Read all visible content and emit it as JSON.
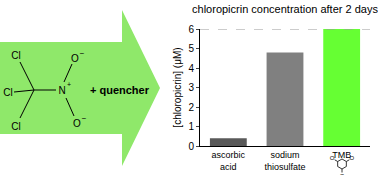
{
  "chart_data": {
    "type": "bar",
    "title": "chloropicrin concentration after 2 days",
    "y_label": "[chloropicrin] (μM)",
    "categories": [
      "ascorbic acid",
      "sodium thiosulfate",
      "TMB"
    ],
    "values": [
      0.4,
      4.8,
      6.0
    ],
    "colors": [
      "#595959",
      "#808080",
      "#66ff33"
    ],
    "ylim": [
      0,
      6
    ],
    "yticks": [
      0,
      1,
      2,
      3,
      4,
      5,
      6
    ],
    "grid": false
  },
  "scheme": {
    "reactant_atoms": [
      "Cl",
      "Cl",
      "Cl",
      "N",
      "+",
      "O",
      "−",
      "O",
      "−"
    ],
    "reagent": "+ quencher",
    "tmb_atoms": [
      "O",
      "O",
      "O"
    ]
  }
}
